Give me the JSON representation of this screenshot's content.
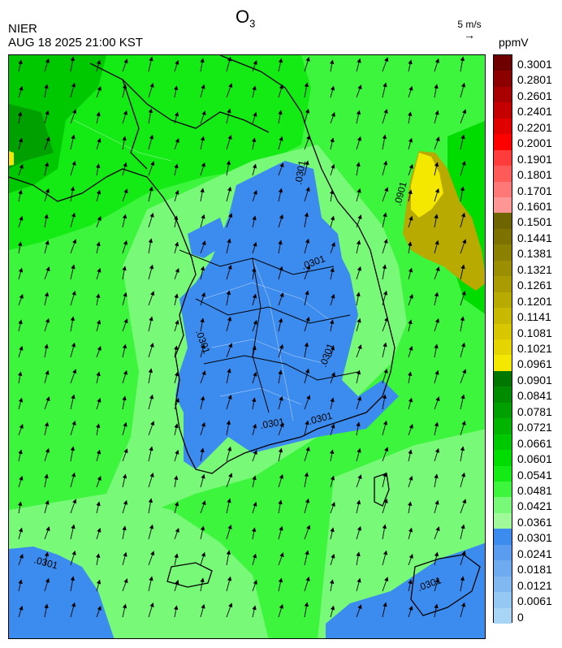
{
  "title": {
    "main": "O",
    "sub": "3"
  },
  "org": "NIER",
  "timestamp": "AUG 18 2025 21:00 KST",
  "wind_ref": {
    "label": "5 m/s"
  },
  "unit": "ppmV",
  "legend": {
    "labels": [
      "0.3001",
      "0.2801",
      "0.2601",
      "0.2401",
      "0.2201",
      "0.2001",
      "0.1901",
      "0.1801",
      "0.1701",
      "0.1601",
      "0.1501",
      "0.1441",
      "0.1381",
      "0.1321",
      "0.1261",
      "0.1201",
      "0.1141",
      "0.1081",
      "0.1021",
      "0.0961",
      "0.0901",
      "0.0841",
      "0.0781",
      "0.0721",
      "0.0661",
      "0.0601",
      "0.0541",
      "0.0481",
      "0.0421",
      "0.0361",
      "0.0301",
      "0.0241",
      "0.0181",
      "0.0121",
      "0.0061",
      "0"
    ],
    "colors": [
      "#6e0000",
      "#8c0000",
      "#a80000",
      "#c40000",
      "#e00000",
      "#ff0000",
      "#ff3c3c",
      "#ff5a5a",
      "#ff7878",
      "#ff9696",
      "#6e6400",
      "#7d7200",
      "#8c8000",
      "#9b8e00",
      "#aa9c00",
      "#b9aa00",
      "#c8b800",
      "#d7c600",
      "#e6d400",
      "#f5e800",
      "#007800",
      "#008c00",
      "#00a000",
      "#00b400",
      "#00c800",
      "#00dc00",
      "#14eb14",
      "#3cf53c",
      "#78fa78",
      "#a0fa9a",
      "#3c8cf0",
      "#5a9cf0",
      "#6eaaf0",
      "#82b8f2",
      "#96c8f4",
      "#a8d4f6"
    ]
  },
  "contour_labels": [
    ".0901",
    ".0301",
    ".0301",
    ".0301",
    ".0301",
    ".0301",
    ".0301",
    ".0301",
    ".0301"
  ]
}
